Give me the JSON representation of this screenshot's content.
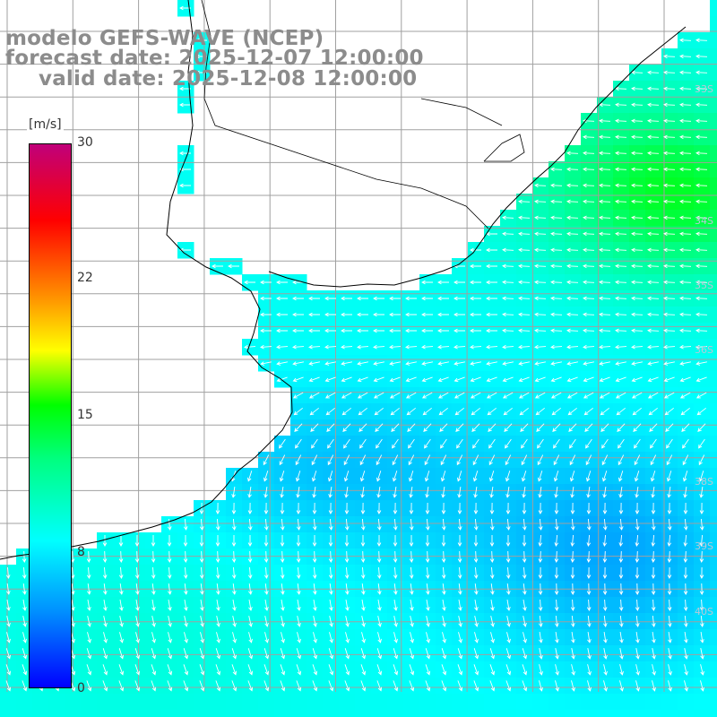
{
  "title": {
    "line1": "modelo GEFS-WAVE (NCEP)",
    "line2": "forecast date: 2025-12-07 12:00:00",
    "line3": "valid date: 2025-12-08 12:00:00"
  },
  "colorbar": {
    "unit": "[m/s]",
    "ticks": [
      "30",
      "22",
      "15",
      "8",
      "0"
    ],
    "stops": [
      "#0000ff",
      "#00a0ff",
      "#00ffff",
      "#00ff00",
      "#ffff00",
      "#ff8000",
      "#ff0000",
      "#c00060"
    ]
  },
  "grid_labels": {
    "lat": [
      "33S",
      "34S",
      "35S",
      "36S",
      "38S",
      "39S",
      "40S"
    ]
  },
  "colors": {
    "land": "#ffffff",
    "coast": "#000000",
    "grid": "#a0a0a0",
    "arrows": "#ffffff"
  }
}
